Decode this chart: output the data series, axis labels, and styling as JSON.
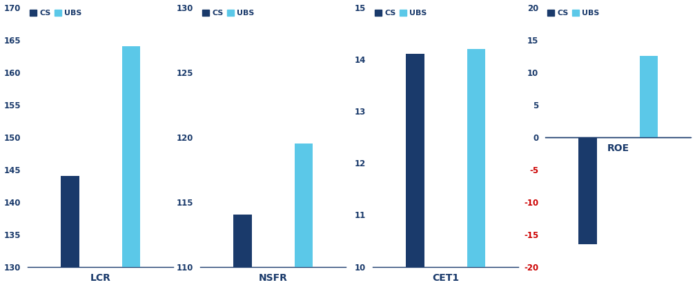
{
  "charts": [
    {
      "label": "LCR",
      "cs_value": 144,
      "ubs_value": 164,
      "ylim": [
        130,
        170
      ],
      "yticks": [
        130,
        135,
        140,
        145,
        150,
        155,
        160,
        165,
        170
      ],
      "negative_ticks": [],
      "is_roe": false
    },
    {
      "label": "NSFR",
      "cs_value": 114,
      "ubs_value": 119.5,
      "ylim": [
        110,
        130
      ],
      "yticks": [
        110,
        115,
        120,
        125,
        130
      ],
      "negative_ticks": [],
      "is_roe": false
    },
    {
      "label": "CET1",
      "cs_value": 14.1,
      "ubs_value": 14.2,
      "ylim": [
        10,
        15
      ],
      "yticks": [
        10,
        11,
        12,
        13,
        14,
        15
      ],
      "negative_ticks": [],
      "is_roe": false
    },
    {
      "label": "ROE",
      "cs_value": -16.5,
      "ubs_value": 12.5,
      "ylim": [
        -20,
        20
      ],
      "yticks": [
        20,
        15,
        10,
        5,
        0,
        -5,
        -10,
        -15,
        -20
      ],
      "negative_ticks": [
        -5,
        -10,
        -15,
        -20
      ],
      "is_roe": true
    }
  ],
  "cs_color": "#1a3a6b",
  "ubs_color": "#5bc8e8",
  "bar_width": 0.3,
  "negative_tick_color": "#cc0000",
  "axis_line_color": "#1a3a6b",
  "xlabel_color": "#1a3a6b",
  "tick_label_color": "#1a3a6b",
  "legend_cs_label": "CS",
  "legend_ubs_label": "UBS",
  "zero_line_color": "#1a3a6b",
  "x_cs": 1,
  "x_ubs": 2,
  "xlim": [
    0.3,
    2.7
  ]
}
